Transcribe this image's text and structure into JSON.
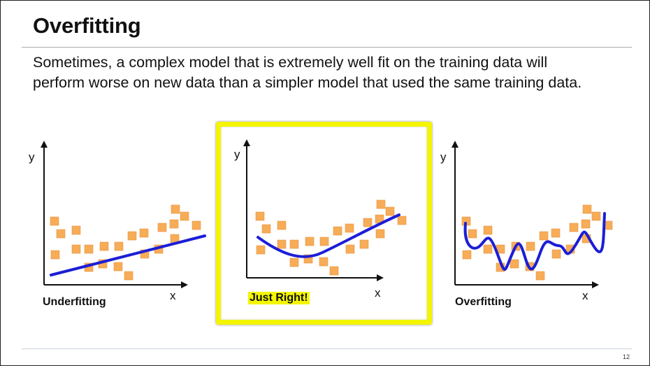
{
  "slide": {
    "title": "Overfitting",
    "body_lines": [
      "Sometimes, a complex model that is extremely well fit on the training data will",
      "perform worse on new data than a simpler model that used the same training data."
    ],
    "page_number": "12"
  },
  "colors": {
    "point": "#f7ac58",
    "point_edge": "#e89540",
    "curve": "#1c1ed6",
    "highlight": "#f4f500",
    "axis": "#111111"
  },
  "panels": [
    {
      "label": "Underfitting",
      "x_axis_label": "x",
      "y_axis_label": "y",
      "highlighted": false,
      "model": "linear"
    },
    {
      "label": "Just Right!",
      "x_axis_label": "x",
      "y_axis_label": "y",
      "highlighted": true,
      "model": "smooth curve"
    },
    {
      "label": "Overfitting",
      "x_axis_label": "x",
      "y_axis_label": "y",
      "highlighted": false,
      "model": "wiggly curve"
    }
  ]
}
